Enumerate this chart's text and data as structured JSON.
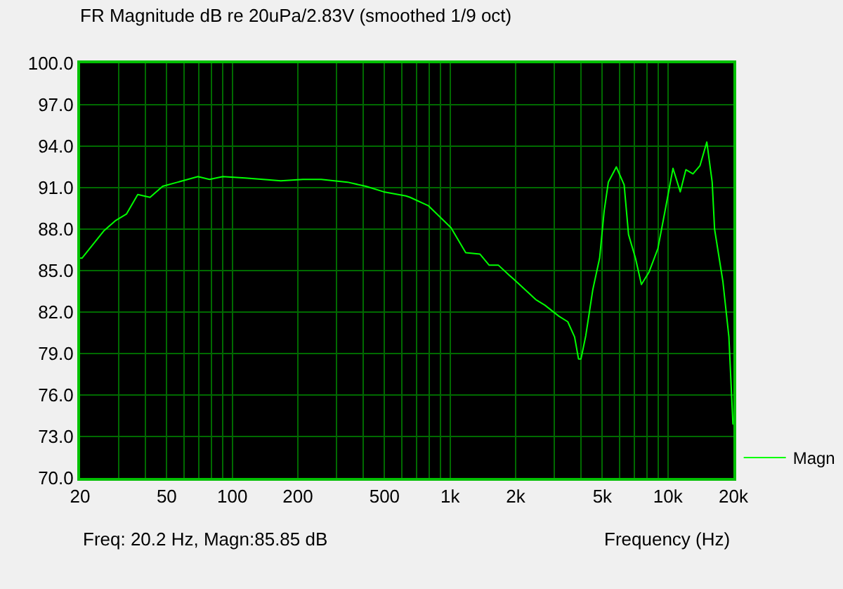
{
  "chart_data": {
    "type": "line",
    "title": "FR Magnitude dB re 20uPa/2.83V (smoothed 1/9 oct)",
    "xlabel": "Frequency (Hz)",
    "annotations": [
      "Freq: 20.2 Hz, Magn:85.85 dB"
    ],
    "log": "x",
    "grid": true,
    "legend": "bottom right",
    "marker": "none",
    "line_style": "solid",
    "x": [
      20,
      20.4,
      25.8,
      29,
      32.7,
      36.8,
      41.9,
      47.9,
      56.2,
      69.5,
      78.6,
      90.5,
      114.5,
      167,
      211,
      256,
      338,
      410,
      496,
      627,
      655,
      794,
      1010,
      1180,
      1370,
      1510,
      1665,
      1860,
      1953,
      2477,
      2722,
      3160,
      3470,
      3730,
      3890,
      3990,
      4200,
      4520,
      4860,
      5100,
      5330,
      5800,
      6300,
      6600,
      7100,
      7560,
      8200,
      9000,
      9700,
      10560,
      11400,
      12100,
      13040,
      14050,
      15100,
      15980,
      16390,
      17900,
      19070,
      19900
    ],
    "series": [
      {
        "name": "Magn",
        "color": "#00ff00",
        "values": [
          85.9,
          85.9,
          87.9,
          88.6,
          89.1,
          90.5,
          90.3,
          91.1,
          91.4,
          91.8,
          91.6,
          91.8,
          91.7,
          91.5,
          91.6,
          91.6,
          91.4,
          91.1,
          90.7,
          90.4,
          90.3,
          89.7,
          88.1,
          86.3,
          86.2,
          85.4,
          85.4,
          84.7,
          84.4,
          82.9,
          82.5,
          81.7,
          81.3,
          80.2,
          78.6,
          78.6,
          80.3,
          83.6,
          85.9,
          89.3,
          91.4,
          92.5,
          91.2,
          87.6,
          85.9,
          84.0,
          84.9,
          86.6,
          89.3,
          92.4,
          90.7,
          92.3,
          92.0,
          92.6,
          94.3,
          91.4,
          88.0,
          84.2,
          80.2,
          73.9
        ]
      }
    ],
    "xlim": [
      20,
      20000
    ],
    "xticks": [
      20,
      {
        "value": 30,
        "label": null
      },
      {
        "value": 40,
        "label": null
      },
      50,
      {
        "value": 60,
        "label": null
      },
      {
        "value": 70,
        "label": null
      },
      {
        "value": 80,
        "label": null
      },
      {
        "value": 90,
        "label": null
      },
      100,
      200,
      {
        "value": 300,
        "label": null
      },
      {
        "value": 400,
        "label": null
      },
      500,
      {
        "value": 600,
        "label": null
      },
      {
        "value": 700,
        "label": null
      },
      {
        "value": 800,
        "label": null
      },
      {
        "value": 900,
        "label": null
      },
      {
        "value": 1000,
        "label": "1k"
      },
      {
        "value": 2000,
        "label": "2k"
      },
      {
        "value": 3000,
        "label": null
      },
      {
        "value": 4000,
        "label": null
      },
      {
        "value": 5000,
        "label": "5k"
      },
      {
        "value": 6000,
        "label": null
      },
      {
        "value": 7000,
        "label": null
      },
      {
        "value": 8000,
        "label": null
      },
      {
        "value": 9000,
        "label": null
      },
      {
        "value": 10000,
        "label": "10k"
      },
      {
        "value": 20000,
        "label": "20k"
      }
    ],
    "ylim": [
      70,
      100
    ],
    "yticks": [
      {
        "value": 70,
        "label": "70.0"
      },
      {
        "value": 73,
        "label": "73.0"
      },
      {
        "value": 76,
        "label": "76.0"
      },
      {
        "value": 79,
        "label": "79.0"
      },
      {
        "value": 82,
        "label": "82.0"
      },
      {
        "value": 85,
        "label": "85.0"
      },
      {
        "value": 88,
        "label": "88.0"
      },
      {
        "value": 91,
        "label": "91.0"
      },
      {
        "value": 94,
        "label": "94.0"
      },
      {
        "value": 97,
        "label": "97.0"
      },
      {
        "value": 100,
        "label": "100.0"
      }
    ]
  }
}
